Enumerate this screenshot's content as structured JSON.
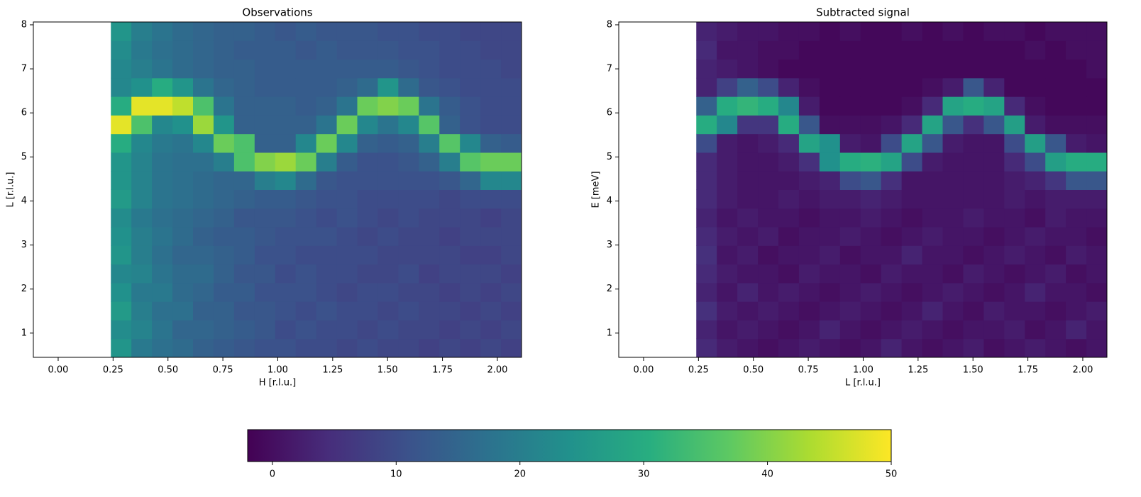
{
  "chart_data": [
    {
      "type": "heatmap",
      "title": "Observations",
      "xlabel": "H [r.l.u.]",
      "ylabel": "L [r.l.u.]",
      "xlim": [
        -0.113,
        2.11
      ],
      "ylim": [
        0.45,
        8.064
      ],
      "xticks": [
        {
          "value": 0,
          "label": "0.00"
        },
        {
          "value": 0.25,
          "label": "0.25"
        },
        {
          "value": 0.5,
          "label": "0.50"
        },
        {
          "value": 0.75,
          "label": "0.75"
        },
        {
          "value": 1,
          "label": "1.00"
        },
        {
          "value": 1.25,
          "label": "1.25"
        },
        {
          "value": 1.5,
          "label": "1.50"
        },
        {
          "value": 1.75,
          "label": "1.75"
        },
        {
          "value": 2,
          "label": "2.00"
        }
      ],
      "yticks": [
        1,
        2,
        3,
        4,
        5,
        6,
        7,
        8
      ],
      "xbins": [
        0.24,
        0.3335,
        0.427,
        0.5205,
        0.614,
        0.7075,
        0.801,
        0.8945,
        0.988,
        1.0815,
        1.175,
        1.2685,
        1.362,
        1.4555,
        1.549,
        1.6425,
        1.736,
        1.8295,
        1.923,
        2.0165,
        2.11
      ],
      "ybins": [
        0.45,
        0.873,
        1.296,
        1.719,
        2.142,
        2.565,
        2.988,
        3.411,
        3.834,
        4.257,
        4.68,
        5.103,
        5.526,
        5.949,
        6.372,
        6.795,
        7.218,
        7.641,
        8.064
      ],
      "values": [
        [
          25,
          19,
          17,
          16,
          14,
          13,
          12,
          11,
          11,
          10,
          10,
          9,
          10,
          9,
          9,
          8,
          9,
          8,
          9,
          8
        ],
        [
          23,
          21,
          18,
          15,
          15,
          14,
          13,
          12,
          10,
          11,
          10,
          10,
          9,
          10,
          9,
          9,
          8,
          9,
          8,
          9
        ],
        [
          26,
          20,
          17,
          17,
          14,
          14,
          12,
          12,
          11,
          10,
          11,
          10,
          10,
          9,
          10,
          9,
          9,
          8,
          9,
          8
        ],
        [
          24,
          19,
          19,
          16,
          15,
          13,
          13,
          11,
          11,
          11,
          10,
          9,
          10,
          10,
          9,
          9,
          8,
          9,
          8,
          9
        ],
        [
          22,
          21,
          18,
          16,
          16,
          14,
          12,
          12,
          10,
          11,
          10,
          10,
          9,
          9,
          10,
          8,
          9,
          9,
          9,
          8
        ],
        [
          25,
          20,
          17,
          15,
          15,
          14,
          13,
          11,
          11,
          10,
          10,
          10,
          10,
          9,
          9,
          9,
          9,
          8,
          8,
          9
        ],
        [
          24,
          20,
          18,
          16,
          14,
          13,
          13,
          12,
          11,
          11,
          11,
          10,
          9,
          10,
          9,
          9,
          8,
          9,
          9,
          9
        ],
        [
          23,
          19,
          17,
          16,
          15,
          14,
          12,
          12,
          12,
          11,
          10,
          11,
          10,
          9,
          10,
          9,
          9,
          9,
          8,
          9
        ],
        [
          26,
          21,
          18,
          17,
          16,
          15,
          14,
          13,
          13,
          12,
          11,
          11,
          10,
          10,
          10,
          10,
          9,
          10,
          10,
          10
        ],
        [
          25,
          21,
          18,
          17,
          16,
          15,
          15,
          20,
          22,
          16,
          12,
          11,
          11,
          11,
          11,
          11,
          12,
          15,
          22,
          22
        ],
        [
          25,
          21,
          18,
          17,
          17,
          20,
          35,
          40,
          42,
          38,
          20,
          13,
          11,
          11,
          12,
          14,
          20,
          36,
          38,
          38
        ],
        [
          30,
          22,
          19,
          18,
          22,
          38,
          35,
          14,
          14,
          22,
          38,
          22,
          14,
          13,
          14,
          20,
          36,
          22,
          14,
          13
        ],
        [
          48,
          35,
          22,
          24,
          42,
          25,
          14,
          14,
          14,
          14,
          18,
          38,
          22,
          18,
          22,
          36,
          14,
          11,
          10,
          10
        ],
        [
          30,
          48,
          48,
          45,
          35,
          18,
          14,
          14,
          14,
          13,
          14,
          18,
          38,
          40,
          38,
          18,
          13,
          11,
          10,
          10
        ],
        [
          22,
          24,
          30,
          25,
          18,
          15,
          14,
          13,
          13,
          13,
          13,
          14,
          16,
          25,
          16,
          12,
          11,
          10,
          10,
          10
        ],
        [
          22,
          20,
          18,
          16,
          15,
          14,
          14,
          13,
          13,
          13,
          13,
          13,
          13,
          13,
          12,
          11,
          10,
          10,
          10,
          9
        ],
        [
          23,
          19,
          17,
          16,
          15,
          14,
          13,
          13,
          13,
          12,
          13,
          12,
          12,
          12,
          11,
          11,
          10,
          10,
          9,
          9
        ],
        [
          25,
          20,
          18,
          16,
          15,
          14,
          14,
          13,
          12,
          13,
          12,
          12,
          12,
          11,
          11,
          10,
          10,
          9,
          9,
          9
        ]
      ]
    },
    {
      "type": "heatmap",
      "title": "Subtracted signal",
      "xlabel": "L [r.l.u.]",
      "ylabel": "E [meV]",
      "xlim": [
        -0.113,
        2.11
      ],
      "ylim": [
        0.45,
        8.064
      ],
      "xticks": [
        {
          "value": 0,
          "label": "0.00"
        },
        {
          "value": 0.25,
          "label": "0.25"
        },
        {
          "value": 0.5,
          "label": "0.50"
        },
        {
          "value": 0.75,
          "label": "0.75"
        },
        {
          "value": 1,
          "label": "1.00"
        },
        {
          "value": 1.25,
          "label": "1.25"
        },
        {
          "value": 1.5,
          "label": "1.50"
        },
        {
          "value": 1.75,
          "label": "1.75"
        },
        {
          "value": 2,
          "label": "2.00"
        }
      ],
      "yticks": [
        1,
        2,
        3,
        4,
        5,
        6,
        7,
        8
      ],
      "xbins": [
        0.24,
        0.3335,
        0.427,
        0.5205,
        0.614,
        0.7075,
        0.801,
        0.8945,
        0.988,
        1.0815,
        1.175,
        1.2685,
        1.362,
        1.4555,
        1.549,
        1.6425,
        1.736,
        1.8295,
        1.923,
        2.0165,
        2.11
      ],
      "ybins": [
        0.45,
        0.873,
        1.296,
        1.719,
        2.142,
        2.565,
        2.988,
        3.411,
        3.834,
        4.257,
        4.68,
        5.103,
        5.526,
        5.949,
        6.372,
        6.795,
        7.218,
        7.641,
        8.064
      ],
      "values": [
        [
          4,
          2,
          1,
          0,
          1,
          2,
          1,
          0,
          1,
          3,
          1,
          0,
          1,
          2,
          0,
          1,
          2,
          1,
          0,
          1
        ],
        [
          3,
          1,
          2,
          1,
          0,
          1,
          3,
          1,
          0,
          1,
          2,
          1,
          0,
          1,
          1,
          2,
          0,
          1,
          3,
          1
        ],
        [
          5,
          2,
          1,
          2,
          1,
          0,
          1,
          2,
          1,
          0,
          1,
          3,
          1,
          0,
          2,
          1,
          1,
          0,
          1,
          2
        ],
        [
          3,
          1,
          3,
          1,
          2,
          1,
          0,
          1,
          2,
          1,
          0,
          1,
          2,
          1,
          0,
          1,
          3,
          1,
          1,
          0
        ],
        [
          4,
          2,
          1,
          1,
          0,
          2,
          1,
          1,
          0,
          2,
          1,
          1,
          0,
          2,
          1,
          0,
          1,
          2,
          0,
          1
        ],
        [
          5,
          1,
          2,
          0,
          1,
          1,
          2,
          0,
          1,
          1,
          3,
          1,
          1,
          0,
          1,
          2,
          1,
          0,
          2,
          1
        ],
        [
          4,
          2,
          1,
          2,
          0,
          1,
          1,
          2,
          1,
          0,
          1,
          2,
          1,
          1,
          0,
          1,
          2,
          1,
          1,
          0
        ],
        [
          3,
          1,
          2,
          1,
          1,
          0,
          1,
          1,
          2,
          1,
          0,
          1,
          1,
          2,
          1,
          1,
          0,
          2,
          1,
          1
        ],
        [
          4,
          2,
          1,
          1,
          2,
          1,
          2,
          2,
          3,
          2,
          1,
          1,
          1,
          1,
          1,
          2,
          1,
          2,
          2,
          2
        ],
        [
          4,
          2,
          1,
          1,
          1,
          2,
          3,
          10,
          12,
          5,
          1,
          1,
          1,
          1,
          1,
          2,
          3,
          6,
          12,
          12
        ],
        [
          4,
          2,
          1,
          1,
          2,
          5,
          24,
          30,
          31,
          28,
          10,
          2,
          1,
          1,
          1,
          4,
          10,
          27,
          30,
          30
        ],
        [
          10,
          2,
          1,
          2,
          4,
          28,
          24,
          2,
          1,
          10,
          28,
          12,
          2,
          1,
          1,
          10,
          27,
          12,
          2,
          1
        ],
        [
          30,
          22,
          6,
          6,
          30,
          12,
          0,
          0,
          0,
          1,
          4,
          28,
          12,
          5,
          12,
          27,
          2,
          0,
          0,
          0
        ],
        [
          14,
          30,
          32,
          30,
          22,
          2,
          -1,
          -1,
          -1,
          -1,
          0,
          4,
          28,
          30,
          28,
          4,
          0,
          -1,
          -1,
          -1
        ],
        [
          3,
          8,
          14,
          10,
          3,
          0,
          -1,
          -1,
          -1,
          -1,
          -1,
          0,
          2,
          12,
          3,
          -1,
          -1,
          -1,
          -1,
          -1
        ],
        [
          3,
          2,
          1,
          0,
          -1,
          -1,
          -1,
          -1,
          -1,
          -1,
          -1,
          -1,
          -1,
          -1,
          -1,
          -1,
          -1,
          -1,
          -1,
          0
        ],
        [
          4,
          1,
          1,
          0,
          0,
          -1,
          -1,
          -1,
          -1,
          -1,
          -1,
          -1,
          -1,
          -1,
          -1,
          -1,
          0,
          -1,
          0,
          0
        ],
        [
          3,
          2,
          1,
          1,
          0,
          0,
          -1,
          0,
          -1,
          -1,
          0,
          -1,
          0,
          -1,
          0,
          0,
          -1,
          0,
          0,
          0
        ]
      ]
    }
  ],
  "colorbar": {
    "clim": [
      -2,
      50
    ],
    "ticks": [
      0,
      10,
      20,
      30,
      40,
      50
    ],
    "colormap": [
      "#440154",
      "#472d7b",
      "#3b528b",
      "#2c728e",
      "#21918c",
      "#28ae80",
      "#5ec962",
      "#addc30",
      "#fde725"
    ]
  }
}
